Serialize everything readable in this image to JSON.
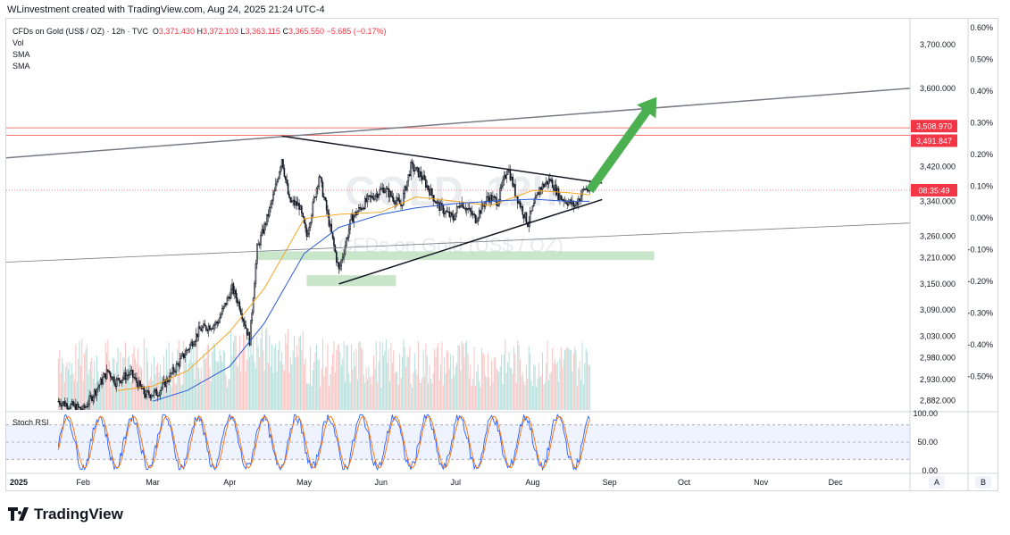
{
  "header": {
    "credit": "WLinvestment created with TradingView.com, Aug 24, 2025 21:24 UTC-4"
  },
  "legend": {
    "symbol": "CFDs on Gold (US$ / OZ) · 12h · TVC",
    "open_label": "O",
    "open": "3,371.430",
    "high_label": "H",
    "high": "3,372.103",
    "low_label": "L",
    "low": "3,363.115",
    "close_label": "C",
    "close": "3,365.550",
    "change": "−5.685 (−0.17%)",
    "vol": "Vol",
    "sma1": "SMA",
    "sma2": "SMA"
  },
  "watermark": {
    "ticker": "GOLD, 12h",
    "name": "CFDs on Gold (US$ / OZ)"
  },
  "brand": "TradingView",
  "colors": {
    "up": "#26a69a",
    "down": "#ef5350",
    "sma_fast": "#f5a623",
    "sma_slow": "#2a5bd7",
    "support_zone": "#a5d6a7",
    "resistance": "#ef5350",
    "arrow": "#4caf50",
    "rsi_k": "#2962ff",
    "rsi_d": "#ff6d00",
    "price_tag": "#f23645"
  },
  "chart_data": {
    "type": "candlestick",
    "price_axis": {
      "range": [
        2860,
        3760
      ],
      "ticks": [
        "3,700.000",
        "3,600.000",
        "3,420.000",
        "3,340.000",
        "3,260.000",
        "3,210.000",
        "3,150.000",
        "3,090.000",
        "3,030.000",
        "2,980.000",
        "2,930.000",
        "2,882.000"
      ],
      "tick_values": [
        3700,
        3600,
        3420,
        3340,
        3260,
        3210,
        3150,
        3090,
        3030,
        2980,
        2930,
        2882
      ]
    },
    "percent_axis": {
      "ticks": [
        "0.60%",
        "0.50%",
        "0.40%",
        "0.30%",
        "0.20%",
        "0.10%",
        "0.00%",
        "-0.10%",
        "-0.20%",
        "-0.30%",
        "-0.40%",
        "-0.50%"
      ]
    },
    "price_tags": [
      {
        "label": "3,508.970",
        "value": 3508.97
      },
      {
        "label": "3,491.847",
        "value": 3491.847
      },
      {
        "label": "08:35:49",
        "value": 3365.55
      }
    ],
    "time_axis": {
      "labels": [
        "2025",
        "Feb",
        "Mar",
        "Apr",
        "May",
        "Jun",
        "Jul",
        "Aug",
        "Sep",
        "Oct",
        "Nov",
        "Dec"
      ],
      "start": "2025-01-01",
      "end": "2025-12-31",
      "label_dates": [
        "2025-01-01",
        "2025-02-01",
        "2025-03-01",
        "2025-04-01",
        "2025-05-01",
        "2025-06-01",
        "2025-07-01",
        "2025-08-01",
        "2025-09-01",
        "2025-10-01",
        "2025-11-01",
        "2025-12-01"
      ],
      "buttons": [
        "A",
        "B"
      ]
    },
    "price_path": [
      [
        "2025-01-22",
        2880
      ],
      [
        "2025-02-01",
        2860
      ],
      [
        "2025-02-06",
        2905
      ],
      [
        "2025-02-11",
        2950
      ],
      [
        "2025-02-14",
        2925
      ],
      [
        "2025-02-20",
        2945
      ],
      [
        "2025-02-26",
        2895
      ],
      [
        "2025-03-03",
        2900
      ],
      [
        "2025-03-07",
        2930
      ],
      [
        "2025-03-14",
        2990
      ],
      [
        "2025-03-20",
        3045
      ],
      [
        "2025-03-27",
        3060
      ],
      [
        "2025-04-02",
        3140
      ],
      [
        "2025-04-05",
        3100
      ],
      [
        "2025-04-09",
        3020
      ],
      [
        "2025-04-12",
        3230
      ],
      [
        "2025-04-16",
        3300
      ],
      [
        "2025-04-19",
        3360
      ],
      [
        "2025-04-22",
        3440
      ],
      [
        "2025-04-25",
        3340
      ],
      [
        "2025-04-29",
        3330
      ],
      [
        "2025-05-02",
        3260
      ],
      [
        "2025-05-07",
        3400
      ],
      [
        "2025-05-10",
        3320
      ],
      [
        "2025-05-15",
        3180
      ],
      [
        "2025-05-20",
        3300
      ],
      [
        "2025-05-26",
        3340
      ],
      [
        "2025-06-02",
        3370
      ],
      [
        "2025-06-09",
        3330
      ],
      [
        "2025-06-13",
        3420
      ],
      [
        "2025-06-17",
        3400
      ],
      [
        "2025-06-24",
        3330
      ],
      [
        "2025-06-30",
        3300
      ],
      [
        "2025-07-03",
        3340
      ],
      [
        "2025-07-09",
        3300
      ],
      [
        "2025-07-14",
        3350
      ],
      [
        "2025-07-18",
        3340
      ],
      [
        "2025-07-22",
        3420
      ],
      [
        "2025-07-25",
        3360
      ],
      [
        "2025-07-30",
        3290
      ],
      [
        "2025-08-04",
        3370
      ],
      [
        "2025-08-08",
        3390
      ],
      [
        "2025-08-12",
        3350
      ],
      [
        "2025-08-18",
        3330
      ],
      [
        "2025-08-22",
        3370
      ],
      [
        "2025-08-24",
        3365
      ]
    ],
    "sma_fast_points": [
      [
        "2025-02-15",
        2905
      ],
      [
        "2025-03-01",
        2915
      ],
      [
        "2025-03-15",
        2950
      ],
      [
        "2025-04-01",
        3040
      ],
      [
        "2025-04-15",
        3140
      ],
      [
        "2025-05-01",
        3300
      ],
      [
        "2025-05-15",
        3310
      ],
      [
        "2025-06-01",
        3315
      ],
      [
        "2025-06-15",
        3350
      ],
      [
        "2025-07-01",
        3340
      ],
      [
        "2025-07-15",
        3330
      ],
      [
        "2025-08-01",
        3365
      ],
      [
        "2025-08-15",
        3360
      ],
      [
        "2025-08-24",
        3355
      ]
    ],
    "sma_slow_points": [
      [
        "2025-03-01",
        2880
      ],
      [
        "2025-03-15",
        2905
      ],
      [
        "2025-04-01",
        2960
      ],
      [
        "2025-04-15",
        3060
      ],
      [
        "2025-05-01",
        3220
      ],
      [
        "2025-05-15",
        3280
      ],
      [
        "2025-06-01",
        3310
      ],
      [
        "2025-06-15",
        3325
      ],
      [
        "2025-07-01",
        3335
      ],
      [
        "2025-07-15",
        3340
      ],
      [
        "2025-08-01",
        3345
      ],
      [
        "2025-08-15",
        3340
      ],
      [
        "2025-08-24",
        3340
      ]
    ],
    "trendlines": [
      {
        "name": "upper-channel",
        "from": [
          "2025-01-01",
          3440
        ],
        "to": [
          "2025-12-31",
          3600
        ]
      },
      {
        "name": "lower-channel",
        "from": [
          "2025-01-01",
          3200
        ],
        "to": [
          "2025-12-31",
          3290
        ]
      },
      {
        "name": "triangle-top",
        "from": [
          "2025-04-22",
          3490
        ],
        "to": [
          "2025-08-29",
          3382
        ]
      },
      {
        "name": "triangle-bottom",
        "from": [
          "2025-05-15",
          3150
        ],
        "to": [
          "2025-08-29",
          3344
        ]
      }
    ],
    "zones": [
      {
        "name": "support-zone-upper",
        "from": [
          "2025-04-12",
          3225
        ],
        "to": [
          "2025-09-19",
          3205
        ]
      },
      {
        "name": "support-zone-lower",
        "from": [
          "2025-05-02",
          3170
        ],
        "to": [
          "2025-06-07",
          3145
        ]
      }
    ],
    "horizontal_levels": [
      3508.97,
      3491.847
    ],
    "arrow": {
      "from": [
        "2025-08-24",
        3365
      ],
      "to": [
        "2025-09-20",
        3580
      ]
    },
    "stoch_rsi": {
      "label": "Stoch RSI",
      "ticks": [
        "100.00",
        "50.00",
        "0.00"
      ],
      "band": [
        20,
        80
      ]
    }
  }
}
